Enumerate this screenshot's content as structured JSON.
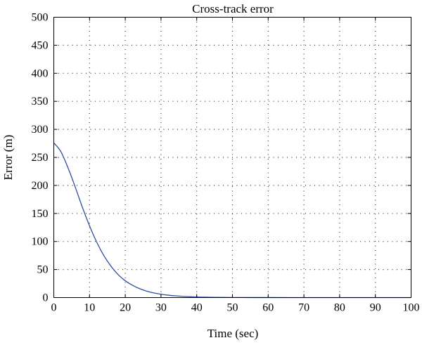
{
  "chart_data": {
    "type": "line",
    "title": "Cross-track error",
    "xlabel": "Time (sec)",
    "ylabel": "Error (m)",
    "xlim": [
      0,
      100
    ],
    "ylim": [
      0,
      500
    ],
    "xticks": [
      0,
      10,
      20,
      30,
      40,
      50,
      60,
      70,
      80,
      90,
      100
    ],
    "yticks": [
      0,
      50,
      100,
      150,
      200,
      250,
      300,
      350,
      400,
      450,
      500
    ],
    "grid": true,
    "series": [
      {
        "color": "#2f4fa2",
        "x": [
          0,
          2,
          4,
          6,
          8,
          10,
          12,
          14,
          16,
          18,
          20,
          22,
          24,
          26,
          28,
          30,
          32,
          34,
          36,
          38,
          40,
          42,
          45,
          50,
          55,
          60,
          70,
          80,
          90,
          100
        ],
        "y": [
          276,
          260,
          231,
          197,
          161,
          128,
          99,
          75,
          56,
          41,
          30,
          22,
          16,
          11.5,
          8.3,
          6,
          4.3,
          3.1,
          2.2,
          1.6,
          1.1,
          0.8,
          0.5,
          0.2,
          0.1,
          0.05,
          0,
          0,
          0,
          0
        ]
      }
    ]
  }
}
